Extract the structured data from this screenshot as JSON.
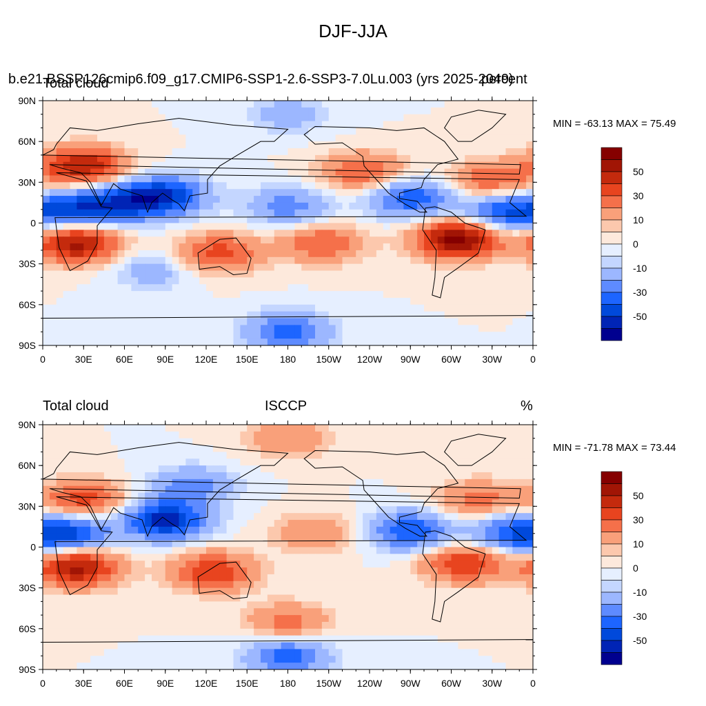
{
  "main_title": "DJF-JJA",
  "colors": {
    "levels": [
      -60,
      -50,
      -40,
      -30,
      -20,
      -10,
      -5,
      0,
      5,
      10,
      20,
      30,
      40,
      50,
      60
    ],
    "palette": [
      "#00008f",
      "#0024b5",
      "#0049db",
      "#1d65ff",
      "#5e8bff",
      "#9cb7ff",
      "#c4d6ff",
      "#e6efff",
      "#fde9dc",
      "#fcc8ad",
      "#f9a07a",
      "#f5704a",
      "#e8441f",
      "#c42a0d",
      "#a11505",
      "#850000"
    ],
    "land": "#000000"
  },
  "panels": [
    {
      "left_title": "Total cloud",
      "center_title": "b.e21.BSSP126cmip6.f09_g17.CMIP6-SSP1-2.6-SSP3-7.0Lu.003 (yrs 2025-2049)",
      "right_title": "percent",
      "min_max_text": "MIN = -63.13 MAX =  75.49",
      "colorbar_labels": [
        "50",
        "30",
        "10",
        "0",
        "-10",
        "-30",
        "-50"
      ]
    },
    {
      "left_title": "Total cloud",
      "center_title": "ISCCP",
      "right_title": "%",
      "min_max_text": "MIN = -71.78 MAX =  73.44",
      "colorbar_labels": [
        "50",
        "30",
        "10",
        "0",
        "-10",
        "-30",
        "-50"
      ]
    }
  ],
  "axes": {
    "lat_labels": [
      "90N",
      "60N",
      "30N",
      "0",
      "30S",
      "60S",
      "90S"
    ],
    "lon_labels": [
      "0",
      "30E",
      "60E",
      "90E",
      "120E",
      "150E",
      "180",
      "150W",
      "120W",
      "90W",
      "60W",
      "30W",
      "0"
    ]
  },
  "chart_data": [
    {
      "type": "heatmap",
      "title": "Total cloud — b.e21.BSSP126cmip6.f09_g17.CMIP6-SSP1-2.6-SSP3-7.0Lu.003 (yrs 2025-2049)",
      "units": "percent",
      "x_range": [
        0,
        360
      ],
      "y_range": [
        -90,
        90
      ],
      "min": -63.13,
      "max": 75.49,
      "features": [
        {
          "lon": 25,
          "lat": -15,
          "value": 55
        },
        {
          "lon": 305,
          "lat": -12,
          "value": 65
        },
        {
          "lon": 30,
          "lat": 42,
          "value": 50
        },
        {
          "lon": 130,
          "lat": -22,
          "value": 35
        },
        {
          "lon": 205,
          "lat": -15,
          "value": 30
        },
        {
          "lon": 90,
          "lat": 20,
          "value": -45
        },
        {
          "lon": 25,
          "lat": 10,
          "value": -40
        },
        {
          "lon": 340,
          "lat": 8,
          "value": -40
        },
        {
          "lon": 270,
          "lat": 18,
          "value": -38
        },
        {
          "lon": 60,
          "lat": 15,
          "value": -35
        },
        {
          "lon": 180,
          "lat": 12,
          "value": -25
        },
        {
          "lon": 235,
          "lat": 38,
          "value": 30
        },
        {
          "lon": 330,
          "lat": 32,
          "value": 30
        },
        {
          "lon": 180,
          "lat": -80,
          "value": -35
        },
        {
          "lon": 180,
          "lat": 80,
          "value": -15
        },
        {
          "lon": 80,
          "lat": -35,
          "value": -15
        }
      ]
    },
    {
      "type": "heatmap",
      "title": "Total cloud — ISCCP",
      "units": "%",
      "x_range": [
        0,
        360
      ],
      "y_range": [
        -90,
        90
      ],
      "min": -71.78,
      "max": 73.44,
      "features": [
        {
          "lon": 25,
          "lat": -15,
          "value": 55
        },
        {
          "lon": 310,
          "lat": -12,
          "value": 40
        },
        {
          "lon": 125,
          "lat": -18,
          "value": 40
        },
        {
          "lon": 30,
          "lat": 35,
          "value": 35
        },
        {
          "lon": 90,
          "lat": 20,
          "value": -55
        },
        {
          "lon": 20,
          "lat": 10,
          "value": -40
        },
        {
          "lon": 345,
          "lat": 10,
          "value": -35
        },
        {
          "lon": 270,
          "lat": 12,
          "value": -40
        },
        {
          "lon": 110,
          "lat": 45,
          "value": -25
        },
        {
          "lon": 200,
          "lat": 10,
          "value": 20
        },
        {
          "lon": 320,
          "lat": 35,
          "value": 25
        },
        {
          "lon": 180,
          "lat": -55,
          "value": 25
        },
        {
          "lon": 180,
          "lat": -80,
          "value": -35
        },
        {
          "lon": 180,
          "lat": 80,
          "value": 20
        }
      ]
    }
  ]
}
